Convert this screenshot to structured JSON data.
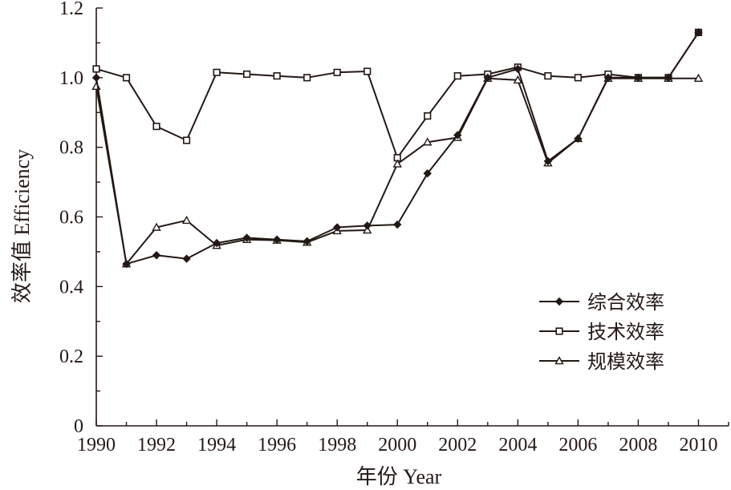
{
  "chart_data": {
    "type": "line",
    "title": "",
    "xlabel": "年份 Year",
    "ylabel": "效率值 Efficiency",
    "xlim": [
      1990,
      2011
    ],
    "ylim": [
      0,
      1.2
    ],
    "x_ticks": [
      "1990",
      "1992",
      "1994",
      "1996",
      "1998",
      "2000",
      "2002",
      "2004",
      "2006",
      "2008",
      "2010"
    ],
    "y_ticks": [
      "0",
      "0.2",
      "0.4",
      "0.6",
      "0.8",
      "1.0",
      "1.2"
    ],
    "grid": false,
    "legend_position": "bottom-right",
    "line_color": "#231815",
    "x": [
      1990,
      1991,
      1992,
      1993,
      1994,
      1995,
      1996,
      1997,
      1998,
      1999,
      2000,
      2001,
      2002,
      2003,
      2004,
      2005,
      2006,
      2007,
      2008,
      2009,
      2010
    ],
    "series": [
      {
        "name": "综合效率",
        "marker": "diamond",
        "values": [
          1.0,
          0.465,
          0.49,
          0.48,
          0.525,
          0.54,
          0.535,
          0.53,
          0.57,
          0.575,
          0.578,
          0.725,
          0.835,
          1.0,
          1.025,
          0.76,
          0.825,
          1.0,
          1.0,
          1.0,
          1.13
        ]
      },
      {
        "name": "技术效率",
        "marker": "square",
        "values": [
          1.025,
          1.0,
          0.86,
          0.82,
          1.015,
          1.01,
          1.005,
          1.0,
          1.015,
          1.018,
          0.77,
          0.89,
          1.005,
          1.01,
          1.03,
          1.005,
          1.0,
          1.01,
          1.0,
          1.0,
          1.13
        ]
      },
      {
        "name": "规模效率",
        "marker": "triangle",
        "values": [
          0.975,
          0.465,
          0.57,
          0.59,
          0.518,
          0.535,
          0.533,
          0.527,
          0.56,
          0.562,
          0.752,
          0.815,
          0.828,
          0.998,
          0.993,
          0.755,
          0.825,
          0.998,
          0.998,
          0.998,
          0.998
        ]
      }
    ]
  }
}
